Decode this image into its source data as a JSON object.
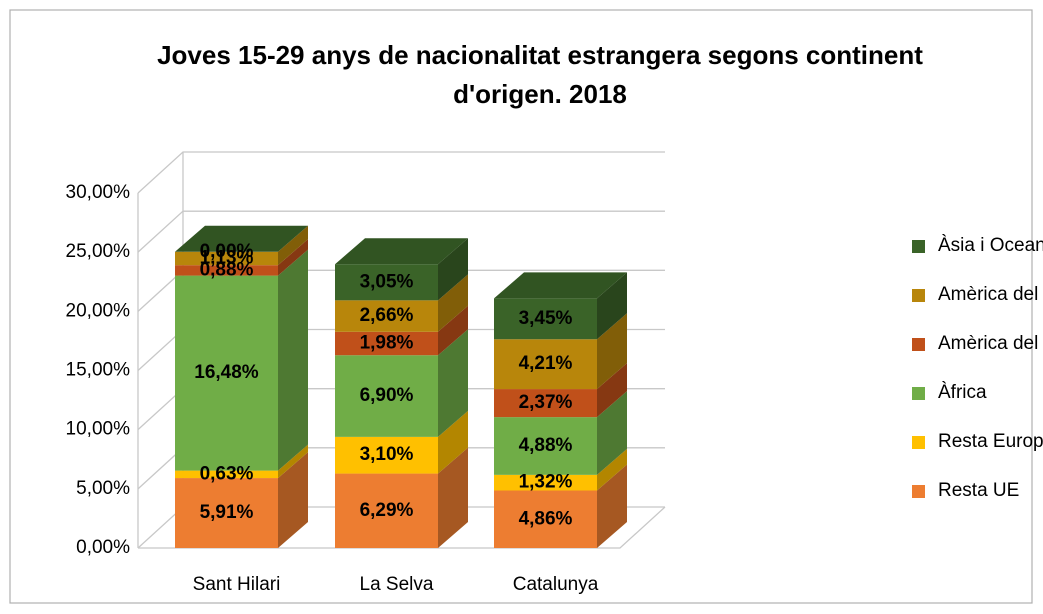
{
  "chart_data": {
    "type": "bar3d_stacked",
    "title": "Joves 15-29 anys de nacionalitat estrangera segons continent d'origen. 2018",
    "categories": [
      "Sant Hilari",
      "La Selva",
      "Catalunya"
    ],
    "series": [
      {
        "name": "Resta UE",
        "color": "#ed7d31",
        "values": [
          5.91,
          6.29,
          4.86
        ],
        "value_labels": [
          "5,91%",
          "6,29%",
          "4,86%"
        ]
      },
      {
        "name": "Resta Europa",
        "color": "#ffc000",
        "values": [
          0.63,
          3.1,
          1.32
        ],
        "value_labels": [
          "0,63%",
          "3,10%",
          "1,32%"
        ]
      },
      {
        "name": "Àfrica",
        "color": "#70ad47",
        "values": [
          16.48,
          6.9,
          4.88
        ],
        "value_labels": [
          "16,48%",
          "6,90%",
          "4,88%"
        ]
      },
      {
        "name": "Amèrica del Nord i Central",
        "color": "#c0501a",
        "values": [
          0.88,
          1.98,
          2.37
        ],
        "value_labels": [
          "0,88%",
          "1,98%",
          "2,37%"
        ]
      },
      {
        "name": "Amèrica del Sud",
        "color": "#b8860b",
        "values": [
          1.13,
          2.66,
          4.21
        ],
        "value_labels": [
          "1,13%",
          "2,66%",
          "4,21%"
        ]
      },
      {
        "name": "Àsia i Oceania",
        "color": "#3a6328",
        "values": [
          0.0,
          3.05,
          3.45
        ],
        "value_labels": [
          "0,00%",
          "3,05%",
          "3,45%"
        ]
      }
    ],
    "ylim": [
      0,
      30
    ],
    "yticks": [
      {
        "value": 0,
        "label": "0,00%"
      },
      {
        "value": 5,
        "label": "5,00%"
      },
      {
        "value": 10,
        "label": "10,00%"
      },
      {
        "value": 15,
        "label": "15,00%"
      },
      {
        "value": 20,
        "label": "20,00%"
      },
      {
        "value": 25,
        "label": "25,00%"
      },
      {
        "value": 30,
        "label": "30,00%"
      }
    ],
    "grid": true,
    "legend": "right"
  }
}
